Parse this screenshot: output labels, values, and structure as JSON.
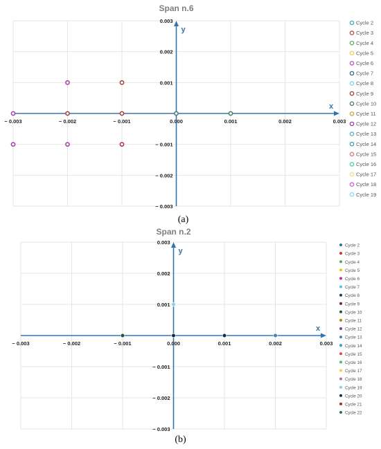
{
  "colors": {
    "axis": "#2e75b6",
    "grid": "#e6e6e6"
  },
  "chart_data": [
    {
      "type": "scatter",
      "id": "a",
      "title": "Span n.6",
      "caption": "(a)",
      "xlabel": "x",
      "ylabel": "y",
      "xlim": [
        -0.003,
        0.003
      ],
      "ylim": [
        -0.003,
        0.003
      ],
      "x_ticks": [
        "− 0.003",
        "− 0.002",
        "− 0.001",
        "0.000",
        "0.001",
        "0.002",
        "0.003"
      ],
      "y_ticks": [
        "0.003",
        "0.002",
        "0.001",
        "0.000",
        "− 0.001",
        "− 0.002",
        "− 0.003"
      ],
      "grid": true,
      "legend_position": "right",
      "marker_style": "hollow",
      "series": [
        {
          "name": "Cycle 2",
          "color": "#4bacc6",
          "points": []
        },
        {
          "name": "Cycle 3",
          "color": "#c0504d",
          "points": []
        },
        {
          "name": "Cycle 4",
          "color": "#5cb85c",
          "points": []
        },
        {
          "name": "Cycle 5",
          "color": "#f0d060",
          "points": []
        },
        {
          "name": "Cycle 6",
          "color": "#cc55cc",
          "points": []
        },
        {
          "name": "Cycle 7",
          "color": "#3a6f8f",
          "points": []
        },
        {
          "name": "Cycle 8",
          "color": "#7fd7e8",
          "points": []
        },
        {
          "name": "Cycle 9",
          "color": "#b04040",
          "points": [
            [
              -0.001,
              0.001
            ],
            [
              -0.002,
              0.0
            ],
            [
              -0.001,
              0.0
            ],
            [
              -0.001,
              -0.001
            ]
          ]
        },
        {
          "name": "Cycle 10",
          "color": "#4f7f6f",
          "points": [
            [
              0.0,
              0.0
            ],
            [
              0.001,
              0.0
            ]
          ]
        },
        {
          "name": "Cycle 11",
          "color": "#d9a441",
          "points": []
        },
        {
          "name": "Cycle 12",
          "color": "#aa44aa",
          "points": [
            [
              -0.002,
              0.001
            ],
            [
              -0.003,
              0.0
            ],
            [
              -0.003,
              -0.001
            ],
            [
              -0.002,
              -0.001
            ]
          ]
        },
        {
          "name": "Cycle 13",
          "color": "#5fb7c9",
          "points": []
        },
        {
          "name": "Cycle 14",
          "color": "#3fa0c0",
          "points": []
        },
        {
          "name": "Cycle 15",
          "color": "#e07b7b",
          "points": []
        },
        {
          "name": "Cycle 16",
          "color": "#4fd69a",
          "points": []
        },
        {
          "name": "Cycle 17",
          "color": "#f2e08a",
          "points": []
        },
        {
          "name": "Cycle 18",
          "color": "#e060e0",
          "points": []
        },
        {
          "name": "Cycle 19",
          "color": "#90dcec",
          "points": []
        }
      ]
    },
    {
      "type": "scatter",
      "id": "b",
      "title": "Span n.2",
      "caption": "(b)",
      "xlabel": "x",
      "ylabel": "y",
      "xlim": [
        -0.003,
        0.003
      ],
      "ylim": [
        -0.003,
        0.003
      ],
      "x_ticks": [
        "− 0.003",
        "− 0.002",
        "− 0.001",
        "0.000",
        "0.001",
        "0.002",
        "0.003"
      ],
      "y_ticks": [
        "0.003",
        "0.002",
        "0.001",
        "0.000",
        "− 0.001",
        "− 0.002",
        "− 0.003"
      ],
      "grid": true,
      "legend_position": "right",
      "marker_style": "filled",
      "series": [
        {
          "name": "Cycle 2",
          "color": "#2e6da4",
          "points": []
        },
        {
          "name": "Cycle 3",
          "color": "#c0392b",
          "points": []
        },
        {
          "name": "Cycle 4",
          "color": "#4caf50",
          "points": []
        },
        {
          "name": "Cycle 5",
          "color": "#f1c40f",
          "points": []
        },
        {
          "name": "Cycle 6",
          "color": "#b030b0",
          "points": []
        },
        {
          "name": "Cycle 7",
          "color": "#5bc0de",
          "points": []
        },
        {
          "name": "Cycle 8",
          "color": "#1f3a5f",
          "points": []
        },
        {
          "name": "Cycle 9",
          "color": "#8b1a1a",
          "points": []
        },
        {
          "name": "Cycle 10",
          "color": "#1e5631",
          "points": [
            [
              -0.001,
              0.0
            ],
            [
              0.0,
              0.0
            ],
            [
              0.001,
              0.0
            ]
          ]
        },
        {
          "name": "Cycle 11",
          "color": "#b8860b",
          "points": []
        },
        {
          "name": "Cycle 12",
          "color": "#7b3f9e",
          "points": []
        },
        {
          "name": "Cycle 13",
          "color": "#4682b4",
          "points": [
            [
              0.002,
              0.0
            ]
          ]
        },
        {
          "name": "Cycle 14",
          "color": "#3498db",
          "points": []
        },
        {
          "name": "Cycle 15",
          "color": "#e74c3c",
          "points": []
        },
        {
          "name": "Cycle 16",
          "color": "#2ecc71",
          "points": []
        },
        {
          "name": "Cycle 17",
          "color": "#f4d03f",
          "points": []
        },
        {
          "name": "Cycle 18",
          "color": "#c060c0",
          "points": []
        },
        {
          "name": "Cycle 19",
          "color": "#87ceeb",
          "points": [
            [
              0.0,
              0.001
            ]
          ]
        },
        {
          "name": "Cycle 20",
          "color": "#1a2a3a",
          "points": [
            [
              0.0,
              0.0
            ],
            [
              0.001,
              0.0
            ]
          ]
        },
        {
          "name": "Cycle 21",
          "color": "#a52a2a",
          "points": []
        },
        {
          "name": "Cycle 22",
          "color": "#2f6f4f",
          "points": []
        }
      ]
    }
  ]
}
